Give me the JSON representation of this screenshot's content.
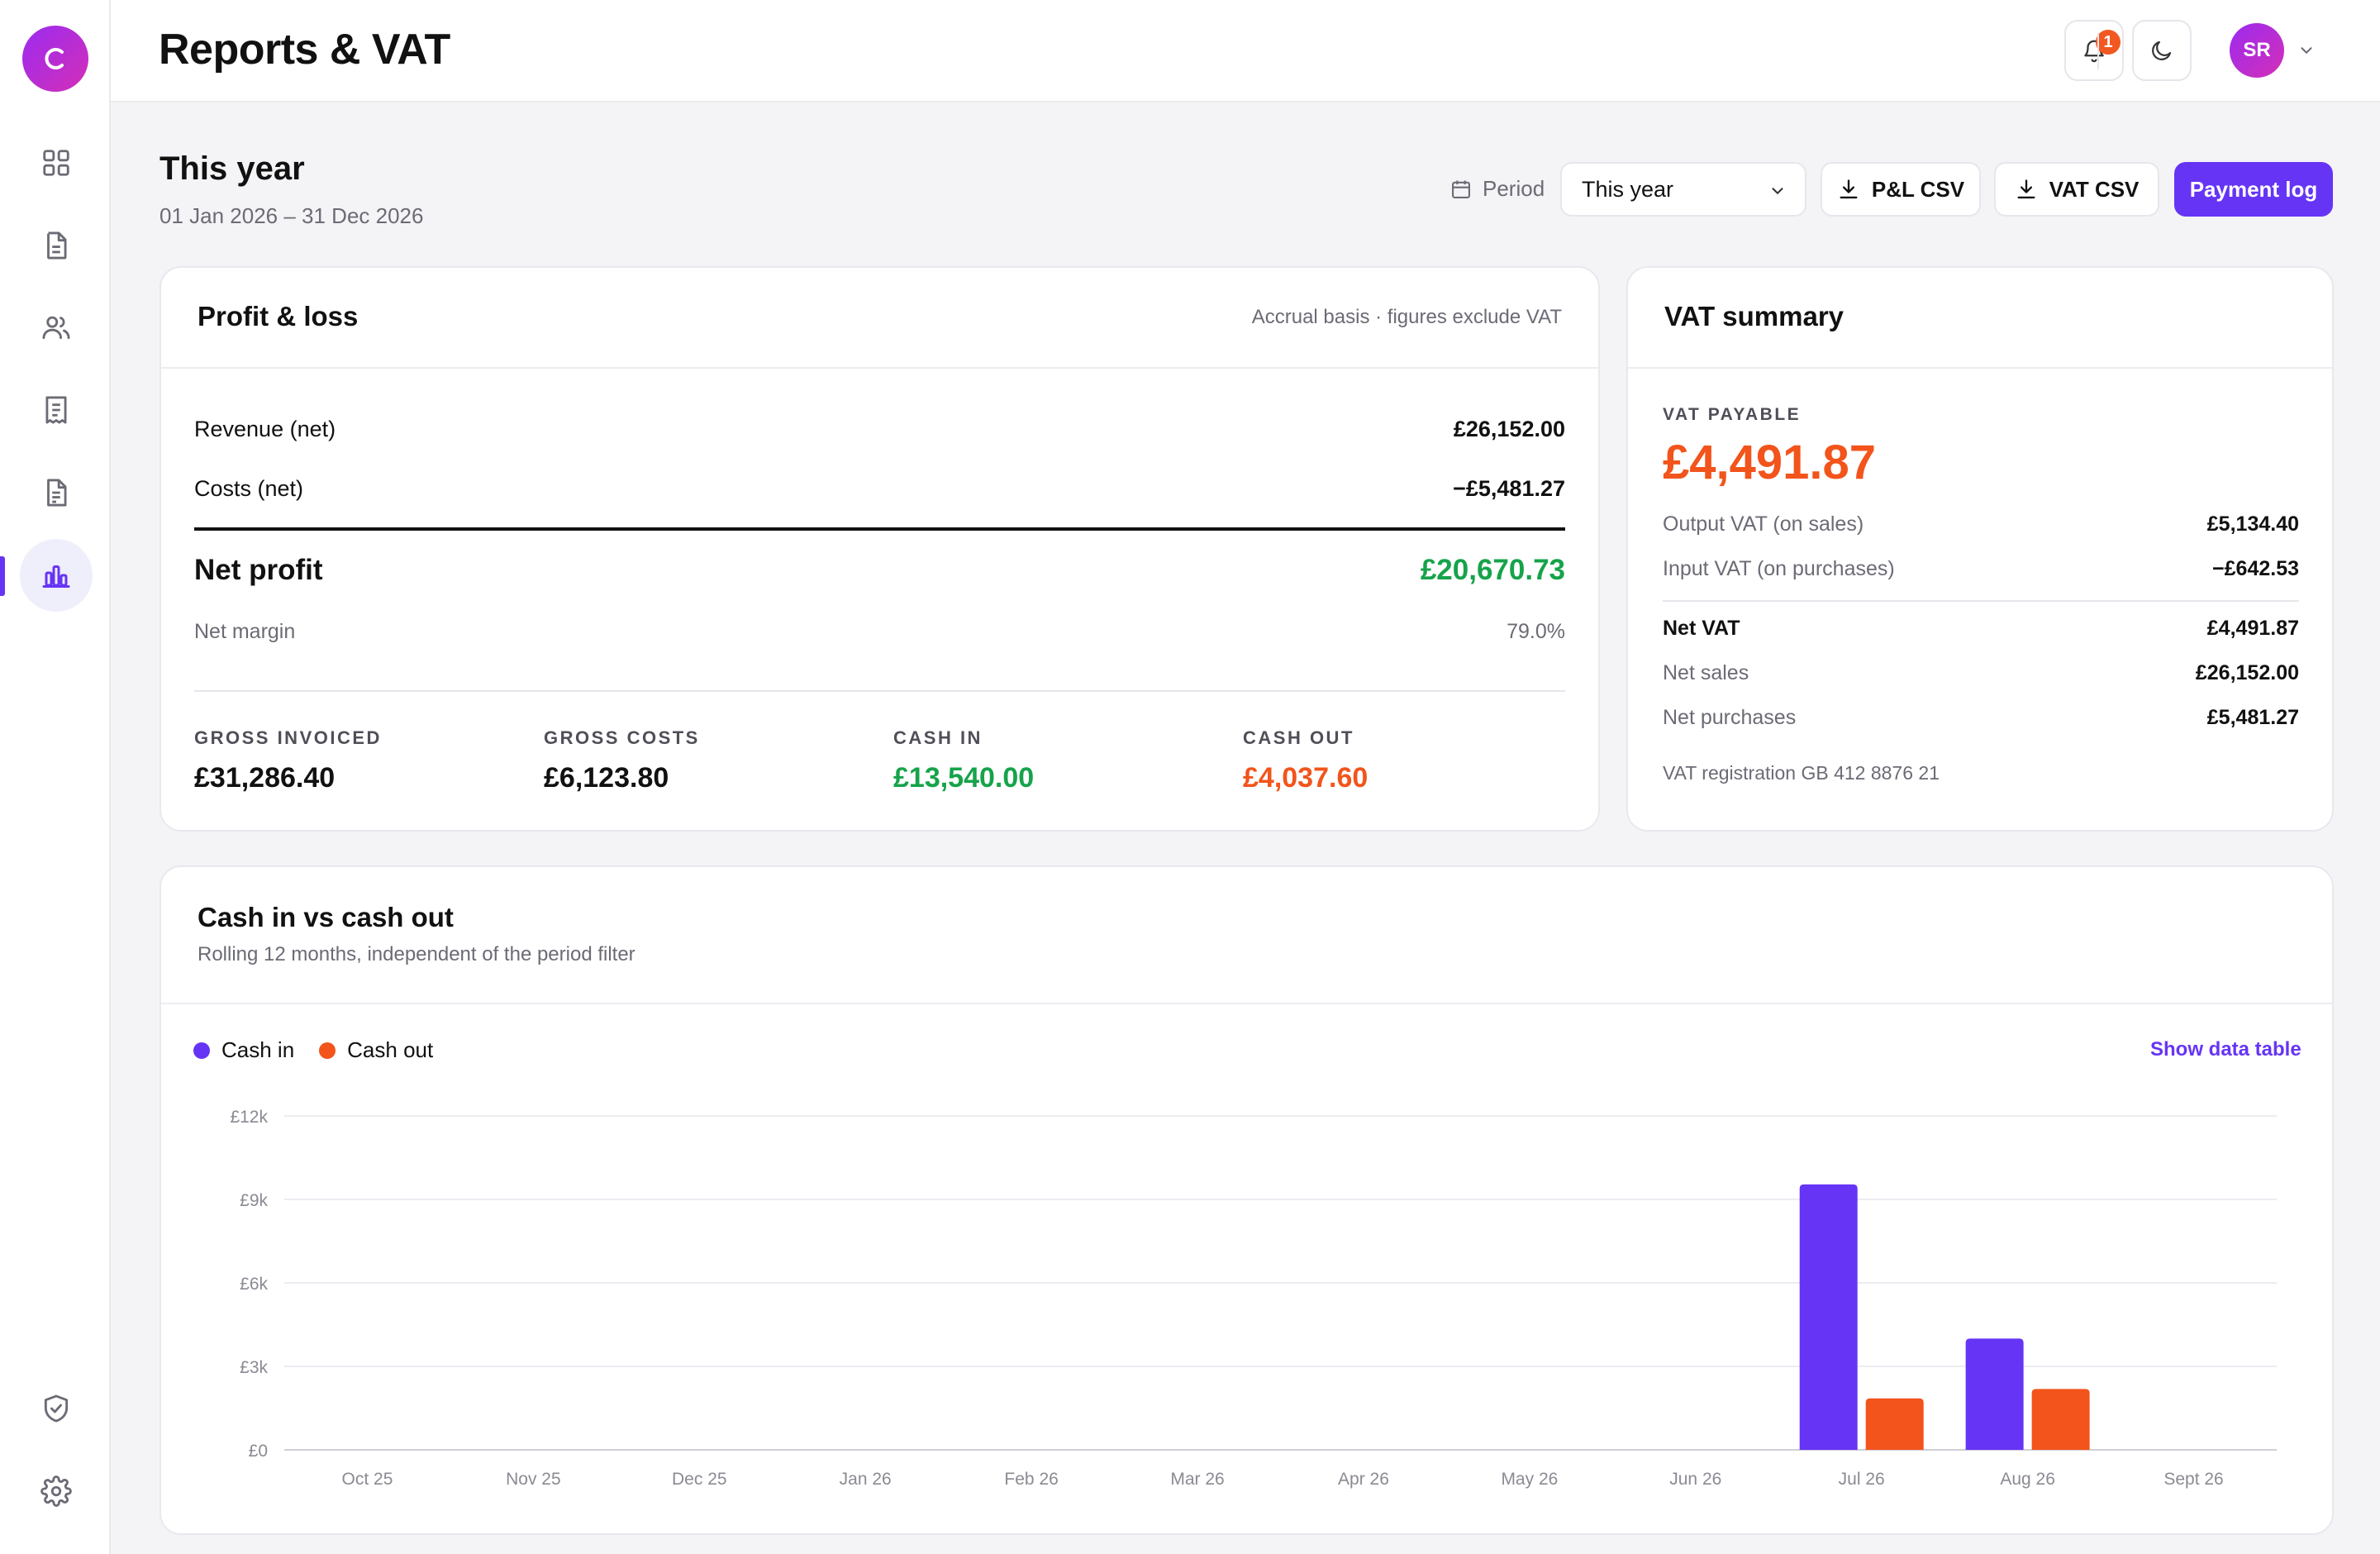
{
  "app": {
    "logo_letter": "C",
    "page_title": "Reports & VAT"
  },
  "sidebar": {
    "items": [
      {
        "icon": "dashboard-grid-icon",
        "active": false
      },
      {
        "icon": "document-icon",
        "active": false
      },
      {
        "icon": "users-icon",
        "active": false
      },
      {
        "icon": "receipt-icon",
        "active": false
      },
      {
        "icon": "invoice-icon",
        "active": false
      },
      {
        "icon": "bar-chart-icon",
        "active": true
      }
    ],
    "bottom": [
      {
        "icon": "shield-check-icon"
      },
      {
        "icon": "gear-icon"
      }
    ]
  },
  "topbar": {
    "notification_count": "1",
    "user_initials": "SR"
  },
  "period": {
    "title": "This year",
    "dates": "01 Jan 2026 – 31 Dec 2026",
    "label": "Period",
    "selected": "This year",
    "pl_csv": "P&L CSV",
    "vat_csv": "VAT CSV",
    "payment_log": "Payment log"
  },
  "pl": {
    "title": "Profit & loss",
    "note": "Accrual basis · figures exclude VAT",
    "revenue_label": "Revenue (net)",
    "revenue_value": "£26,152.00",
    "costs_label": "Costs (net)",
    "costs_value": "−£5,481.27",
    "net_profit_label": "Net profit",
    "net_profit_value": "£20,670.73",
    "net_margin_label": "Net margin",
    "net_margin_value": "79.0%",
    "stats": [
      {
        "label": "GROSS INVOICED",
        "value": "£31,286.40"
      },
      {
        "label": "GROSS COSTS",
        "value": "£6,123.80"
      },
      {
        "label": "CASH IN",
        "value": "£13,540.00"
      },
      {
        "label": "CASH OUT",
        "value": "£4,037.60"
      }
    ]
  },
  "vat": {
    "title": "VAT summary",
    "payable_label": "VAT PAYABLE",
    "payable_value": "£4,491.87",
    "output_label": "Output VAT (on sales)",
    "output_value": "£5,134.40",
    "input_label": "Input VAT (on purchases)",
    "input_value": "−£642.53",
    "net_vat_label": "Net VAT",
    "net_vat_value": "£4,491.87",
    "net_sales_label": "Net sales",
    "net_sales_value": "£26,152.00",
    "net_purchases_label": "Net purchases",
    "net_purchases_value": "£5,481.27",
    "registration": "VAT registration GB 412 8876 21"
  },
  "cash_chart": {
    "title": "Cash in vs cash out",
    "subtitle": "Rolling 12 months, independent of the period filter",
    "show_table": "Show data table"
  },
  "colors": {
    "accent": "#6634f5",
    "cash_in": "#6634f5",
    "cash_out": "#f2541b",
    "positive": "#16a34a"
  },
  "chart_data": {
    "type": "bar",
    "categories": [
      "Oct 25",
      "Nov 25",
      "Dec 25",
      "Jan 26",
      "Feb 26",
      "Mar 26",
      "Apr 26",
      "May 26",
      "Jun 26",
      "Jul 26",
      "Aug 26",
      "Sept 26"
    ],
    "series": [
      {
        "name": "Cash in",
        "values": [
          0,
          0,
          0,
          0,
          0,
          0,
          0,
          0,
          0,
          9540,
          4000,
          0
        ]
      },
      {
        "name": "Cash out",
        "values": [
          0,
          0,
          0,
          0,
          0,
          0,
          0,
          0,
          0,
          1850,
          2187.6,
          0
        ]
      }
    ],
    "yticks": [
      "£0",
      "£3k",
      "£6k",
      "£9k",
      "£12k"
    ],
    "ytick_values": [
      0,
      3000,
      6000,
      9000,
      12000
    ],
    "ylim": [
      0,
      12000
    ],
    "grid": true,
    "legend": "top-left"
  }
}
